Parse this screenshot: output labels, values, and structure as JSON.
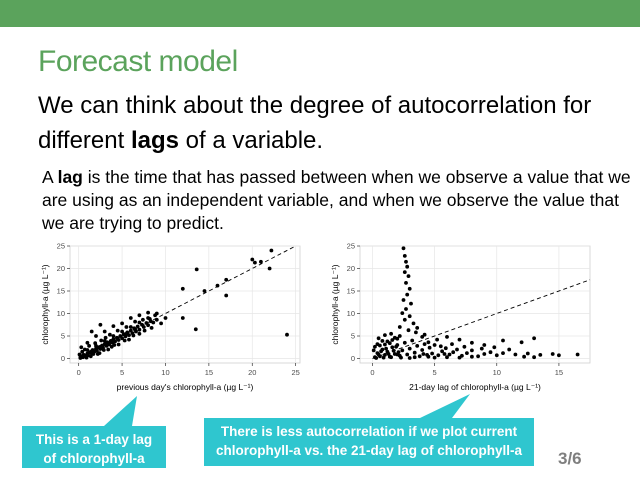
{
  "slide": {
    "title": "Forecast model",
    "headline_pre": "We can think about the degree of autocorrelation for different ",
    "headline_bold": "lags",
    "headline_post": " of a variable.",
    "para_pre": "A ",
    "para_bold": "lag",
    "para_post": " is the time that has passed between when we observe a value that we are using as an independent variable, and when we observe the value that we are trying to predict.",
    "callout_left": "This is a 1-day lag of chlorophyll-a",
    "callout_right": "There is less autocorrelation if we plot current chlorophyll-a vs. the 21-day lag of chlorophyll-a",
    "page_number": "3/6",
    "colors": {
      "accent": "#5ba35c",
      "callout": "#2fc6cf"
    }
  },
  "chart_data": [
    {
      "type": "scatter",
      "xlabel": "previous day's chlorophyll-a (µg L⁻¹)",
      "ylabel": "chlorophyll-a (µg L⁻¹)",
      "xlim": [
        -1,
        25.5
      ],
      "ylim": [
        -1,
        25
      ],
      "xticks": [
        0,
        5,
        10,
        15,
        20,
        25
      ],
      "yticks": [
        0,
        5,
        10,
        15,
        20,
        25
      ],
      "grid": true,
      "reference_line": {
        "slope": 1,
        "intercept": 0,
        "style": "dashed"
      },
      "points": [
        [
          0.2,
          0.1
        ],
        [
          0.3,
          0.5
        ],
        [
          0.5,
          0.3
        ],
        [
          0.6,
          0.8
        ],
        [
          0.8,
          0.6
        ],
        [
          1.0,
          1.1
        ],
        [
          1.1,
          0.7
        ],
        [
          1.3,
          1.4
        ],
        [
          1.5,
          1.2
        ],
        [
          1.6,
          1.9
        ],
        [
          1.8,
          1.5
        ],
        [
          2.0,
          2.2
        ],
        [
          2.1,
          1.7
        ],
        [
          2.3,
          2.5
        ],
        [
          2.5,
          2.1
        ],
        [
          2.7,
          2.9
        ],
        [
          2.8,
          2.4
        ],
        [
          3.0,
          3.2
        ],
        [
          3.2,
          2.8
        ],
        [
          3.3,
          3.6
        ],
        [
          3.5,
          3.1
        ],
        [
          3.7,
          3.9
        ],
        [
          3.9,
          3.5
        ],
        [
          4.0,
          4.3
        ],
        [
          4.2,
          3.8
        ],
        [
          4.4,
          4.6
        ],
        [
          4.6,
          4.1
        ],
        [
          4.8,
          5.0
        ],
        [
          5.0,
          4.5
        ],
        [
          5.2,
          5.4
        ],
        [
          5.4,
          4.9
        ],
        [
          5.6,
          5.8
        ],
        [
          5.8,
          5.2
        ],
        [
          6.0,
          6.2
        ],
        [
          6.2,
          5.6
        ],
        [
          6.4,
          6.7
        ],
        [
          6.6,
          6.0
        ],
        [
          6.8,
          7.1
        ],
        [
          7.0,
          6.4
        ],
        [
          7.3,
          7.5
        ],
        [
          7.5,
          7.0
        ],
        [
          7.8,
          7.9
        ],
        [
          8.0,
          7.4
        ],
        [
          8.3,
          8.3
        ],
        [
          8.6,
          8.0
        ],
        [
          9.0,
          8.6
        ],
        [
          0.7,
          2.0
        ],
        [
          1.2,
          2.8
        ],
        [
          1.9,
          3.4
        ],
        [
          2.6,
          4.0
        ],
        [
          3.1,
          4.6
        ],
        [
          3.6,
          5.3
        ],
        [
          1.0,
          3.5
        ],
        [
          2.0,
          5.0
        ],
        [
          4.5,
          6.2
        ],
        [
          5.5,
          7.0
        ],
        [
          6.5,
          8.2
        ],
        [
          2.2,
          1.0
        ],
        [
          3.4,
          2.0
        ],
        [
          4.6,
          3.1
        ],
        [
          5.8,
          4.2
        ],
        [
          7.0,
          5.5
        ],
        [
          8.4,
          6.8
        ],
        [
          9.5,
          7.8
        ],
        [
          10.0,
          9.0
        ],
        [
          0.4,
          1.5
        ],
        [
          1.4,
          0.5
        ],
        [
          2.4,
          1.2
        ],
        [
          3.8,
          2.6
        ],
        [
          0.9,
          0.2
        ],
        [
          1.7,
          1.0
        ],
        [
          2.9,
          1.9
        ],
        [
          4.1,
          3.0
        ],
        [
          5.3,
          4.0
        ],
        [
          6.3,
          5.1
        ],
        [
          7.6,
          6.2
        ],
        [
          3.0,
          6.0
        ],
        [
          4.0,
          7.2
        ],
        [
          5.0,
          7.8
        ],
        [
          6.0,
          9.0
        ],
        [
          7.0,
          9.6
        ],
        [
          8.0,
          10.2
        ],
        [
          2.5,
          7.5
        ],
        [
          1.5,
          6.0
        ],
        [
          9.0,
          10.0
        ],
        [
          12.0,
          9.0
        ],
        [
          12.0,
          15.5
        ],
        [
          13.5,
          6.5
        ],
        [
          13.6,
          19.8
        ],
        [
          14.5,
          15.0
        ],
        [
          16.0,
          16.2
        ],
        [
          17.0,
          14.0
        ],
        [
          17.0,
          17.5
        ],
        [
          20.0,
          22.0
        ],
        [
          20.3,
          21.3
        ],
        [
          21.0,
          21.5
        ],
        [
          22.0,
          20.0
        ],
        [
          22.2,
          24.0
        ],
        [
          24.0,
          5.3
        ],
        [
          0.3,
          2.5
        ],
        [
          0.1,
          0.9
        ],
        [
          1.0,
          1.9
        ],
        [
          2.0,
          2.8
        ],
        [
          3.0,
          3.9
        ],
        [
          4.0,
          5.0
        ],
        [
          5.0,
          6.0
        ],
        [
          6.0,
          7.0
        ],
        [
          7.0,
          8.0
        ],
        [
          8.0,
          9.0
        ],
        [
          8.8,
          9.6
        ],
        [
          8.2,
          8.8
        ],
        [
          7.4,
          8.6
        ],
        [
          3.5,
          3.4
        ],
        [
          4.5,
          4.4
        ],
        [
          5.5,
          5.5
        ],
        [
          6.5,
          6.4
        ],
        [
          2.5,
          2.6
        ],
        [
          1.5,
          1.6
        ],
        [
          0.5,
          0.6
        ],
        [
          0.2,
          0.3
        ]
      ]
    },
    {
      "type": "scatter",
      "xlabel": "21-day lag of chlorophyll-a (µg L⁻¹)",
      "ylabel": "chlorophyll-a (µg L⁻¹)",
      "xlim": [
        -1,
        17.5
      ],
      "ylim": [
        -1,
        25
      ],
      "xticks": [
        0,
        5,
        10,
        15
      ],
      "yticks": [
        0,
        5,
        10,
        15,
        20,
        25
      ],
      "grid": true,
      "reference_line": {
        "slope": 1,
        "intercept": 0,
        "style": "dashed"
      },
      "points": [
        [
          0.2,
          0.3
        ],
        [
          0.4,
          1.2
        ],
        [
          0.6,
          0.5
        ],
        [
          0.8,
          2.0
        ],
        [
          1.0,
          0.8
        ],
        [
          1.2,
          1.5
        ],
        [
          1.4,
          0.4
        ],
        [
          1.6,
          2.5
        ],
        [
          1.8,
          1.0
        ],
        [
          2.0,
          3.0
        ],
        [
          2.2,
          0.6
        ],
        [
          2.4,
          1.8
        ],
        [
          2.6,
          3.5
        ],
        [
          2.8,
          0.9
        ],
        [
          3.0,
          2.2
        ],
        [
          3.2,
          4.0
        ],
        [
          3.4,
          1.3
        ],
        [
          3.6,
          2.8
        ],
        [
          3.8,
          0.5
        ],
        [
          4.0,
          1.9
        ],
        [
          4.2,
          3.2
        ],
        [
          4.4,
          0.8
        ],
        [
          4.6,
          2.4
        ],
        [
          4.8,
          1.1
        ],
        [
          5.0,
          3.0
        ],
        [
          5.3,
          0.7
        ],
        [
          5.6,
          1.6
        ],
        [
          5.9,
          2.3
        ],
        [
          6.2,
          0.9
        ],
        [
          6.5,
          1.4
        ],
        [
          6.8,
          2.0
        ],
        [
          7.2,
          0.6
        ],
        [
          7.6,
          1.2
        ],
        [
          8.0,
          1.8
        ],
        [
          8.5,
          0.5
        ],
        [
          9.0,
          1.0
        ],
        [
          9.5,
          1.4
        ],
        [
          10.0,
          0.7
        ],
        [
          10.5,
          1.2
        ],
        [
          11.5,
          0.9
        ],
        [
          12.5,
          1.1
        ],
        [
          13.5,
          0.8
        ],
        [
          14.5,
          1.0
        ],
        [
          15.0,
          0.7
        ],
        [
          16.5,
          0.9
        ],
        [
          2.5,
          24.5
        ],
        [
          2.6,
          22.8
        ],
        [
          2.7,
          21.5
        ],
        [
          2.8,
          20.4
        ],
        [
          2.6,
          19.2
        ],
        [
          2.9,
          18.3
        ],
        [
          2.7,
          16.8
        ],
        [
          3.0,
          15.5
        ],
        [
          2.8,
          14.2
        ],
        [
          2.5,
          13.0
        ],
        [
          3.1,
          12.2
        ],
        [
          2.7,
          11.0
        ],
        [
          2.4,
          10.1
        ],
        [
          3.0,
          9.4
        ],
        [
          2.6,
          8.6
        ],
        [
          3.3,
          7.8
        ],
        [
          2.2,
          7.0
        ],
        [
          2.9,
          6.3
        ],
        [
          1.5,
          5.5
        ],
        [
          3.5,
          5.8
        ],
        [
          1.8,
          4.6
        ],
        [
          4.0,
          4.8
        ],
        [
          1.2,
          3.8
        ],
        [
          4.5,
          3.6
        ],
        [
          5.2,
          4.2
        ],
        [
          6.0,
          4.8
        ],
        [
          7.0,
          4.2
        ],
        [
          8.0,
          3.5
        ],
        [
          9.0,
          3.0
        ],
        [
          10.5,
          4.0
        ],
        [
          12.0,
          3.6
        ],
        [
          13.0,
          4.5
        ],
        [
          0.3,
          0.1
        ],
        [
          0.5,
          0.9
        ],
        [
          0.7,
          1.6
        ],
        [
          0.9,
          0.2
        ],
        [
          1.1,
          2.2
        ],
        [
          1.3,
          1.0
        ],
        [
          1.5,
          0.3
        ],
        [
          1.7,
          1.7
        ],
        [
          1.9,
          2.6
        ],
        [
          2.1,
          1.4
        ],
        [
          2.3,
          0.2
        ],
        [
          0.1,
          1.8
        ],
        [
          0.2,
          2.6
        ],
        [
          0.4,
          3.2
        ],
        [
          0.6,
          2.9
        ],
        [
          0.8,
          3.9
        ],
        [
          1.0,
          3.1
        ],
        [
          1.4,
          3.4
        ],
        [
          1.6,
          4.1
        ],
        [
          2.0,
          4.4
        ],
        [
          2.2,
          5.0
        ],
        [
          3.6,
          6.8
        ],
        [
          4.2,
          5.3
        ],
        [
          5.5,
          2.7
        ],
        [
          6.4,
          3.2
        ],
        [
          7.4,
          2.6
        ],
        [
          8.8,
          2.2
        ],
        [
          9.8,
          2.5
        ],
        [
          11.0,
          2.0
        ],
        [
          12.2,
          0.4
        ],
        [
          13.0,
          0.3
        ],
        [
          3.0,
          0.1
        ],
        [
          5.0,
          0.2
        ],
        [
          7.0,
          0.2
        ],
        [
          4.5,
          0.4
        ],
        [
          6.0,
          0.3
        ],
        [
          8.0,
          0.4
        ],
        [
          2.0,
          0.9
        ],
        [
          3.4,
          0.3
        ],
        [
          4.1,
          1.0
        ],
        [
          5.8,
          1.0
        ],
        [
          0.5,
          4.5
        ],
        [
          1.0,
          5.2
        ]
      ]
    }
  ]
}
